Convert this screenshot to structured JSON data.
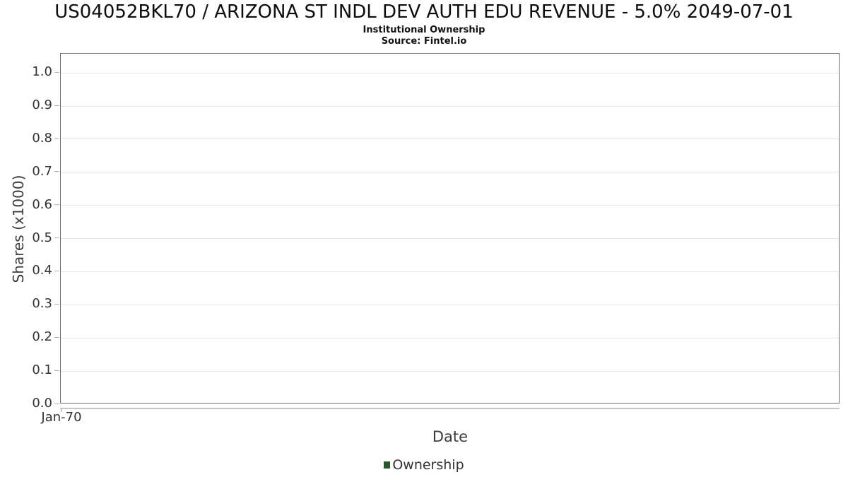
{
  "chart_data": {
    "type": "line",
    "title": "US04052BKL70 / ARIZONA ST INDL DEV AUTH EDU REVENUE - 5.0% 2049-07-01",
    "subtitle": "Institutional Ownership",
    "source": "Source: Fintel.io",
    "xlabel": "Date",
    "ylabel": "Shares (x1000)",
    "x_tick_labels": [
      "Jan-70"
    ],
    "y_tick_labels": [
      "0.0",
      "0.1",
      "0.2",
      "0.3",
      "0.4",
      "0.5",
      "0.6",
      "0.7",
      "0.8",
      "0.9",
      "1.0"
    ],
    "y_tick_values": [
      0.0,
      0.1,
      0.2,
      0.3,
      0.4,
      0.5,
      0.6,
      0.7,
      0.8,
      0.9,
      1.0
    ],
    "ylim": [
      0.0,
      1.058
    ],
    "grid": "horizontal",
    "legend": {
      "position": "bottom-center",
      "entries": [
        {
          "label": "Ownership",
          "color": "#26582b"
        }
      ]
    },
    "series": [
      {
        "name": "Ownership",
        "x": [],
        "y": []
      }
    ],
    "colors": {
      "plot_border": "#6f6f6f",
      "gridline": "#e7e7e7",
      "axis_line": "#c6c6c6",
      "tick_text": "#333333",
      "axis_title_text": "#3c3c3c",
      "title_text": "#0d0d0d",
      "background": "#ffffff"
    }
  }
}
